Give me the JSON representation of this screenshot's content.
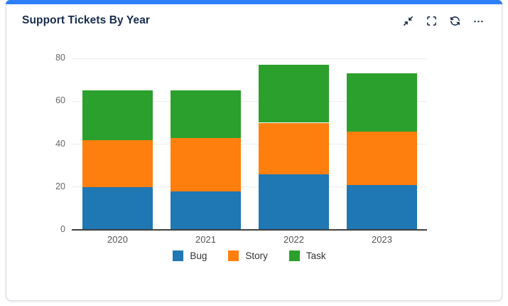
{
  "card": {
    "title": "Support Tickets By Year",
    "accent_color": "#2e7ef7",
    "title_color": "#172b4d",
    "toolbar_icons": {
      "collapse": "collapse-icon",
      "fullscreen": "fullscreen-icon",
      "refresh": "refresh-icon",
      "more": "more-options-icon"
    }
  },
  "chart_data": {
    "type": "bar",
    "stacked": true,
    "title": "Support Tickets By Year",
    "categories": [
      "2020",
      "2021",
      "2022",
      "2023"
    ],
    "series": [
      {
        "name": "Bug",
        "color": "#1f77b4",
        "values": [
          20,
          18,
          26,
          21
        ]
      },
      {
        "name": "Story",
        "color": "#ff7f0e",
        "values": [
          22,
          25,
          24,
          25
        ]
      },
      {
        "name": "Task",
        "color": "#2ca02c",
        "values": [
          23,
          22,
          27,
          27
        ]
      }
    ],
    "totals": [
      65,
      65,
      77,
      73
    ],
    "xlabel": "",
    "ylabel": "",
    "ylim": [
      0,
      80
    ],
    "yticks": [
      0,
      20,
      40,
      60,
      80
    ],
    "grid": true,
    "legend_position": "bottom",
    "axis_color": "#404040",
    "gridline_color": "#ededed"
  }
}
